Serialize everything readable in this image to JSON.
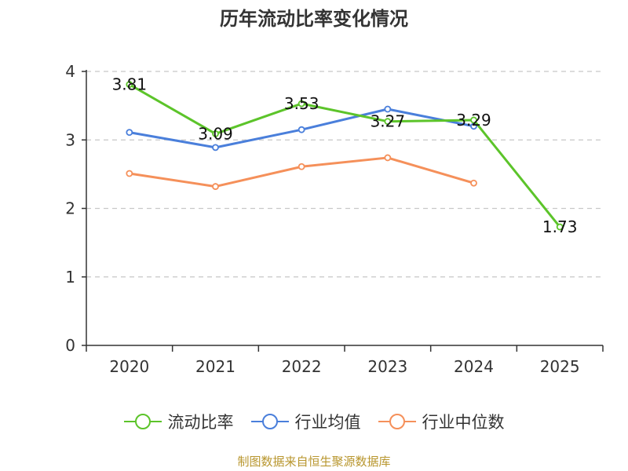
{
  "chart_data": {
    "type": "line",
    "title": "历年流动比率变化情况",
    "categories": [
      "2020",
      "2021",
      "2022",
      "2023",
      "2024",
      "2025"
    ],
    "ylim": [
      0,
      4
    ],
    "yticks": [
      0,
      1,
      2,
      3,
      4
    ],
    "grid": true,
    "legend_position": "bottom",
    "series": [
      {
        "name": "流动比率",
        "color": "#5cc42a",
        "values": [
          3.81,
          3.09,
          3.53,
          3.27,
          3.29,
          1.73
        ],
        "labels": [
          "3.81",
          "3.09",
          "3.53",
          "3.27",
          "3.29",
          "1.73"
        ]
      },
      {
        "name": "行业均值",
        "color": "#4a7fdb",
        "values": [
          3.11,
          2.89,
          3.15,
          3.45,
          3.2,
          null
        ]
      },
      {
        "name": "行业中位数",
        "color": "#f5905a",
        "values": [
          2.51,
          2.32,
          2.61,
          2.74,
          2.37,
          null
        ]
      }
    ]
  },
  "source_note": "制图数据来自恒生聚源数据库"
}
